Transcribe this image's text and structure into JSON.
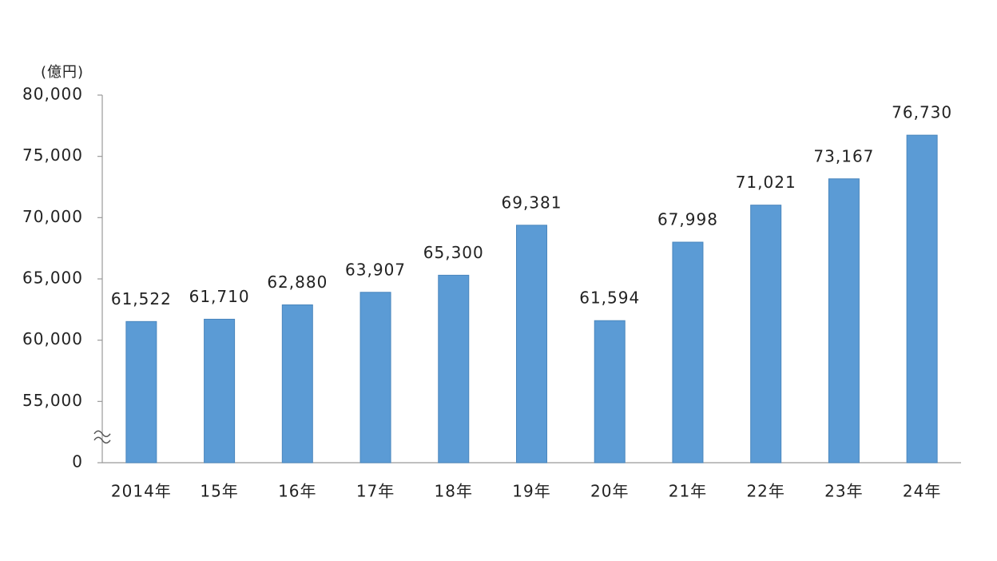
{
  "chart_data": {
    "type": "bar",
    "ylabel": "(億円)",
    "categories": [
      "2014年",
      "15年",
      "16年",
      "17年",
      "18年",
      "19年",
      "20年",
      "21年",
      "22年",
      "23年",
      "24年"
    ],
    "values": [
      61522,
      61710,
      62880,
      63907,
      65300,
      69381,
      61594,
      67998,
      71021,
      73167,
      76730
    ],
    "value_labels": [
      "61,522",
      "61,710",
      "62,880",
      "63,907",
      "65,300",
      "69,381",
      "61,594",
      "67,998",
      "71,021",
      "73,167",
      "76,730"
    ],
    "color": "#5b9bd5",
    "ylim": [
      0,
      80000
    ],
    "yticks": [
      0,
      {
        "value": 55000,
        "label": "55,000"
      },
      {
        "value": 60000,
        "label": "60,000"
      },
      {
        "value": 65000,
        "label": "65,000"
      },
      {
        "value": 70000,
        "label": "70,000"
      },
      {
        "value": 75000,
        "label": "75,000"
      },
      {
        "value": 80000,
        "label": "80,000"
      }
    ],
    "axis_break": true,
    "grid": false
  }
}
